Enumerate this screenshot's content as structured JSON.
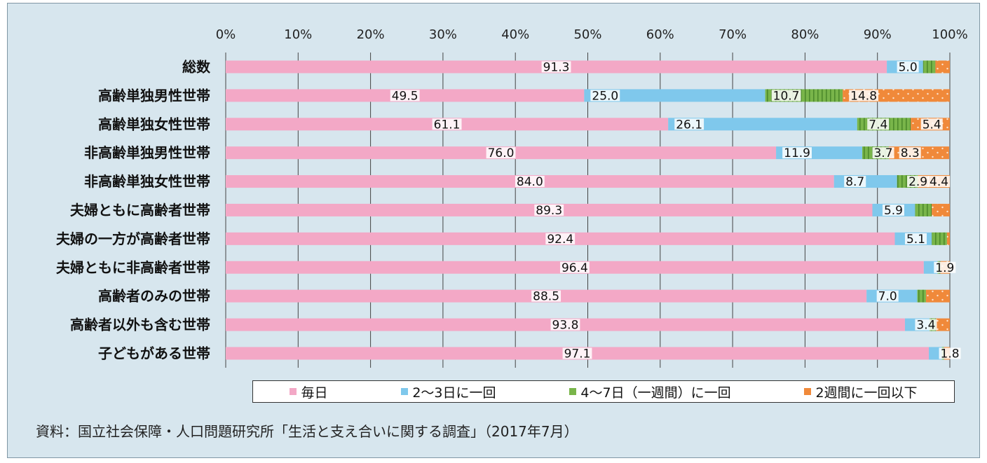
{
  "chart_data": {
    "type": "bar",
    "orientation": "horizontal",
    "stacked": true,
    "percent": true,
    "xlim": [
      0,
      100
    ],
    "ticks": [
      "0%",
      "10%",
      "20%",
      "30%",
      "40%",
      "50%",
      "60%",
      "70%",
      "80%",
      "90%",
      "100%"
    ],
    "categories": [
      "総数",
      "高齢単独男性世帯",
      "高齢単独女性世帯",
      "非高齢単独男性世帯",
      "非高齢単独女性世帯",
      "夫婦ともに高齢者世帯",
      "夫婦の一方が高齢者世帯",
      "夫婦ともに非高齢者世帯",
      "高齢者のみの世帯",
      "高齢者以外も含む世帯",
      "子どもがある世帯"
    ],
    "series": [
      {
        "name": "毎日",
        "color": "#f3a8c6",
        "values": [
          91.3,
          49.5,
          61.1,
          76.0,
          84.0,
          89.3,
          92.4,
          96.4,
          88.5,
          93.8,
          97.1
        ],
        "labels": [
          "91.3",
          "49.5",
          "61.1",
          "76.0",
          "84.0",
          "89.3",
          "92.4",
          "96.4",
          "88.5",
          "93.8",
          "97.1"
        ]
      },
      {
        "name": "2～3日に一回",
        "color": "#7fc8ec",
        "values": [
          5.0,
          25.0,
          26.1,
          11.9,
          8.7,
          5.9,
          5.1,
          1.9,
          7.0,
          3.4,
          1.8
        ],
        "labels": [
          "5.0",
          "25.0",
          "26.1",
          "11.9",
          "8.7",
          "5.9",
          "5.1",
          "1.9",
          "7.0",
          "3.4",
          "1.8"
        ]
      },
      {
        "name": "4～7日（一週間）に一回",
        "color": "#79b54a",
        "values": [
          1.7,
          10.7,
          7.4,
          3.7,
          2.9,
          2.3,
          2.1,
          0.4,
          1.2,
          0.9,
          0.3
        ],
        "labels": [
          "",
          "10.7",
          "7.4",
          "3.7",
          "2.9",
          "",
          "",
          "",
          "",
          "",
          ""
        ]
      },
      {
        "name": "2週間に一回以下",
        "color": "#f0893a",
        "values": [
          2.0,
          14.8,
          5.4,
          8.3,
          4.4,
          2.5,
          0.4,
          1.3,
          3.3,
          1.9,
          0.8
        ],
        "labels": [
          "",
          "14.8",
          "5.4",
          "8.3",
          "4.4",
          "",
          "",
          "",
          "",
          "",
          ""
        ]
      }
    ]
  },
  "source": "資料：国立社会保障・人口問題研究所「生活と支え合いに関する調査」（2017年7月）"
}
